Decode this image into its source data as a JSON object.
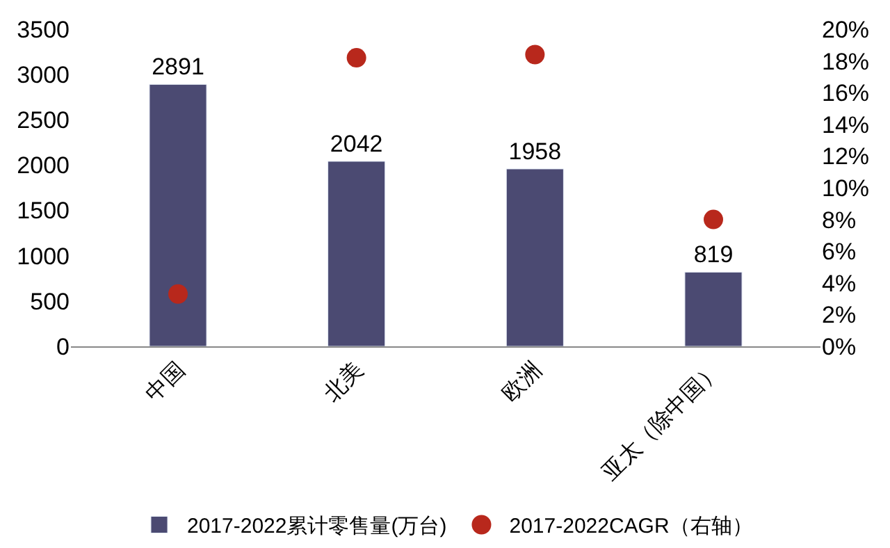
{
  "chart_data": {
    "type": "bar",
    "categories": [
      "中国",
      "北美",
      "欧洲",
      "亚太（除中国）"
    ],
    "series": [
      {
        "name": "2017-2022累计零售量(万台)",
        "color": "#4b4a72",
        "values": [
          2891,
          2042,
          1958,
          819
        ],
        "value_labels": [
          "2891",
          "2042",
          "1958",
          "819"
        ]
      },
      {
        "name": "2017-2022CAGR（右轴）",
        "type": "scatter",
        "axis": "y2",
        "color": "#b8281c",
        "marker": "circle",
        "values": [
          3.3,
          18.2,
          18.4,
          8.0
        ]
      }
    ],
    "ylim": [
      0,
      3500
    ],
    "yticks": [
      0,
      500,
      1000,
      1500,
      2000,
      2500,
      3000,
      3500
    ],
    "y2lim": [
      0,
      20
    ],
    "y2ticks": [
      {
        "value": 0,
        "label": "0%"
      },
      {
        "value": 2,
        "label": "2%"
      },
      {
        "value": 4,
        "label": "4%"
      },
      {
        "value": 6,
        "label": "6%"
      },
      {
        "value": 8,
        "label": "8%"
      },
      {
        "value": 10,
        "label": "10%"
      },
      {
        "value": 12,
        "label": "12%"
      },
      {
        "value": 14,
        "label": "14%"
      },
      {
        "value": 16,
        "label": "16%"
      },
      {
        "value": 18,
        "label": "18%"
      },
      {
        "value": 20,
        "label": "20%"
      }
    ],
    "legend": "bottom"
  }
}
